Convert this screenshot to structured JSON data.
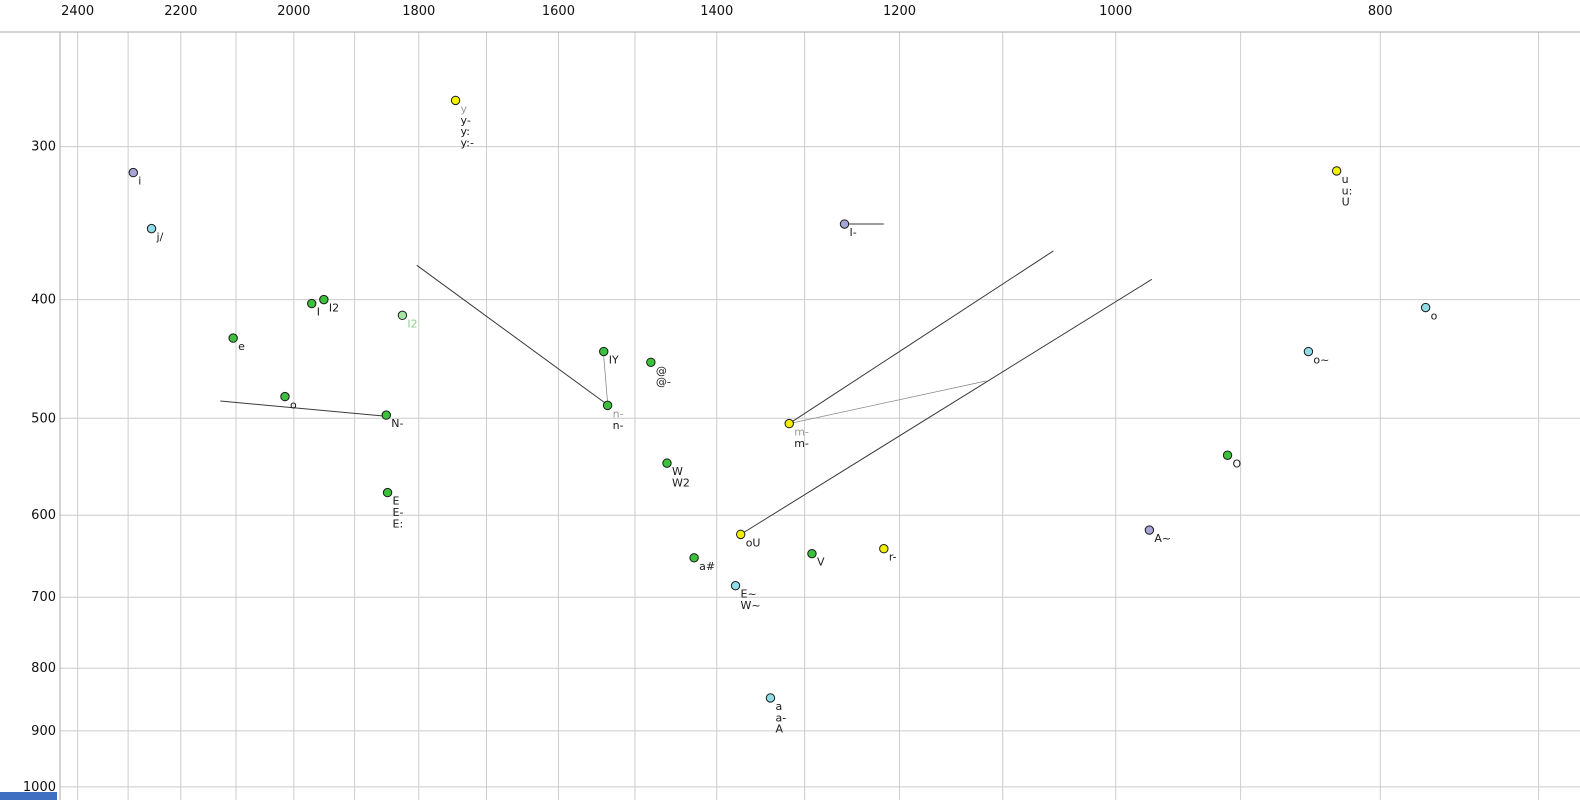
{
  "corner_accent": {
    "color": "#3f6fc1"
  },
  "chart_data": {
    "type": "scatter",
    "title": "",
    "x_axis": {
      "scale": "log",
      "reversed": true,
      "ticks": [
        2400,
        2200,
        2000,
        1800,
        1600,
        1400,
        1200,
        1000,
        800
      ],
      "grid_min": 700,
      "grid_max": 2400,
      "grid_step": 100,
      "edge_values": [
        2436,
        676
      ]
    },
    "y_axis": {
      "scale": "log",
      "increases_downward": true,
      "ticks": [
        300,
        400,
        500,
        600,
        700,
        800,
        900,
        1000
      ],
      "grid_min": 300,
      "grid_max": 1000,
      "grid_step": 100,
      "edge_values": [
        240,
        1025
      ]
    },
    "grid_color": "#cccccc",
    "axis_line_color": "#aaaaaa",
    "tick_label_color": "#111111",
    "palette": {
      "yellow": "#f2ef00",
      "green": "#3cc13c",
      "pale_green": "#a5e6a5",
      "cyan": "#8fdce8",
      "purple": "#a5a5d9"
    },
    "label_colors": {
      "default": "#1a1a1a",
      "grey": "#9a9a9a",
      "pale": "#8fcf8f"
    },
    "points": [
      {
        "id": "y",
        "f2": 1745,
        "f1": 275,
        "color": "yellow",
        "labels": [
          {
            "text": "y",
            "tone": "grey"
          },
          {
            "text": "y-"
          },
          {
            "text": "y:"
          },
          {
            "text": "y:-"
          }
        ]
      },
      {
        "id": "i",
        "f2": 2290,
        "f1": 315,
        "color": "purple",
        "labels": [
          {
            "text": "i"
          }
        ]
      },
      {
        "id": "j/",
        "f2": 2255,
        "f1": 350,
        "color": "cyan",
        "labels": [
          {
            "text": "j/"
          }
        ]
      },
      {
        "id": "I",
        "f2": 1970,
        "f1": 403,
        "color": "green",
        "labels": [
          {
            "text": "I"
          }
        ]
      },
      {
        "id": "I2",
        "f2": 1950,
        "f1": 400,
        "color": "green",
        "labels": [
          {
            "text": "I2"
          }
        ]
      },
      {
        "id": "I2-pale",
        "f2": 1825,
        "f1": 412,
        "color": "pale_green",
        "labels": [
          {
            "text": "I2",
            "tone": "pale"
          }
        ]
      },
      {
        "id": "e",
        "f2": 2105,
        "f1": 430,
        "color": "green",
        "labels": [
          {
            "text": "e"
          }
        ]
      },
      {
        "id": "o-front",
        "f2": 2015,
        "f1": 480,
        "color": "green",
        "labels": [
          {
            "text": "o"
          }
        ]
      },
      {
        "id": "N-",
        "f2": 1850,
        "f1": 497,
        "color": "green",
        "labels": [
          {
            "text": "N-"
          }
        ]
      },
      {
        "id": "E",
        "f2": 1848,
        "f1": 575,
        "color": "green",
        "labels": [
          {
            "text": "E"
          },
          {
            "text": "E-"
          },
          {
            "text": "E:"
          }
        ]
      },
      {
        "id": "IY",
        "f2": 1540,
        "f1": 441,
        "color": "green",
        "labels": [
          {
            "text": "IY"
          }
        ]
      },
      {
        "id": "@",
        "f2": 1480,
        "f1": 450,
        "color": "green",
        "labels": [
          {
            "text": "@"
          },
          {
            "text": "@-"
          }
        ]
      },
      {
        "id": "n-",
        "f2": 1535,
        "f1": 488,
        "color": "green",
        "labels": [
          {
            "text": "n-",
            "tone": "grey"
          },
          {
            "text": "n-"
          }
        ]
      },
      {
        "id": "W",
        "f2": 1460,
        "f1": 544,
        "color": "green",
        "labels": [
          {
            "text": "W"
          },
          {
            "text": "W2"
          }
        ]
      },
      {
        "id": "m-",
        "f2": 1317,
        "f1": 505,
        "color": "yellow",
        "labels": [
          {
            "text": "m-",
            "tone": "grey"
          },
          {
            "text": "m-"
          }
        ]
      },
      {
        "id": "I-",
        "f2": 1257,
        "f1": 347,
        "color": "purple",
        "labels": [
          {
            "text": "I-"
          }
        ]
      },
      {
        "id": "oU",
        "f2": 1372,
        "f1": 622,
        "color": "yellow",
        "labels": [
          {
            "text": "oU"
          }
        ]
      },
      {
        "id": "a#",
        "f2": 1427,
        "f1": 650,
        "color": "green",
        "labels": [
          {
            "text": "a#"
          }
        ]
      },
      {
        "id": "V",
        "f2": 1292,
        "f1": 645,
        "color": "green",
        "labels": [
          {
            "text": "V"
          }
        ]
      },
      {
        "id": "r-",
        "f2": 1216,
        "f1": 639,
        "color": "yellow",
        "labels": [
          {
            "text": "r-"
          }
        ]
      },
      {
        "id": "E~",
        "f2": 1378,
        "f1": 685,
        "color": "cyan",
        "labels": [
          {
            "text": "E~"
          },
          {
            "text": "W~"
          }
        ]
      },
      {
        "id": "a",
        "f2": 1338,
        "f1": 846,
        "color": "cyan",
        "labels": [
          {
            "text": "a"
          },
          {
            "text": "a-"
          },
          {
            "text": "A"
          }
        ]
      },
      {
        "id": "A~",
        "f2": 972,
        "f1": 617,
        "color": "purple",
        "labels": [
          {
            "text": "A~"
          }
        ]
      },
      {
        "id": "O",
        "f2": 910,
        "f1": 536,
        "color": "green",
        "labels": [
          {
            "text": "O"
          }
        ]
      },
      {
        "id": "o~",
        "f2": 850,
        "f1": 441,
        "color": "cyan",
        "labels": [
          {
            "text": "o~"
          }
        ]
      },
      {
        "id": "o",
        "f2": 770,
        "f1": 406,
        "color": "cyan",
        "labels": [
          {
            "text": "o"
          }
        ]
      },
      {
        "id": "u",
        "f2": 830,
        "f1": 314,
        "color": "yellow",
        "labels": [
          {
            "text": "u"
          },
          {
            "text": "u:"
          },
          {
            "text": "U"
          }
        ]
      }
    ],
    "segments": [
      {
        "from": [
          1803,
          375
        ],
        "to": [
          1534,
          488
        ]
      },
      {
        "from": [
          2128,
          484
        ],
        "to": [
          1852,
          498
        ]
      },
      {
        "from": [
          1257,
          347
        ],
        "to": [
          1216,
          347
        ]
      },
      {
        "from": [
          1317,
          505
        ],
        "to": [
          1054,
          365
        ]
      },
      {
        "from": [
          1372,
          622
        ],
        "to": [
          970,
          385
        ]
      },
      {
        "from": [
          1317,
          505
        ],
        "to": [
          1115,
          466
        ],
        "thin": true
      },
      {
        "from": [
          1540,
          445
        ],
        "to": [
          1535,
          486
        ],
        "thin": true
      }
    ]
  }
}
